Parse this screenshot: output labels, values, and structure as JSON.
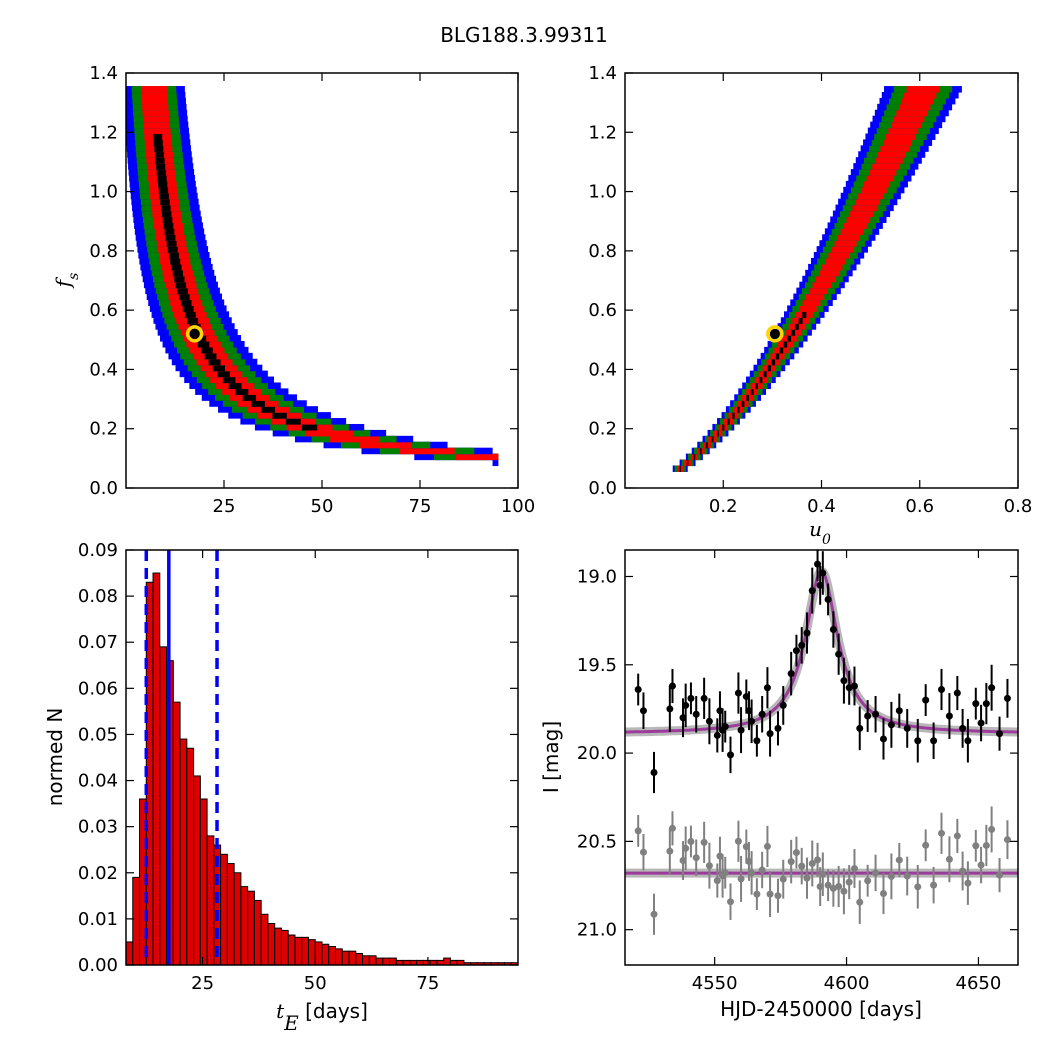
{
  "title": "BLG188.3.99311",
  "colors": {
    "c1": "#0000ff",
    "c2": "#008000",
    "c3": "#ff0000",
    "c4": "#000000",
    "best": "#ffd400",
    "model": "#9b3b9b",
    "data": "#000000",
    "residual": "#808080",
    "hist": "#dd0000"
  },
  "chart_data": [
    {
      "type": "scatter",
      "name": "fs_vs_tE",
      "ylabel": "f_s",
      "xlim": [
        0,
        100
      ],
      "ylim": [
        0,
        1.4
      ],
      "xticks": [
        "25",
        "50",
        "75",
        "100"
      ],
      "yticks": [
        "0.0",
        "0.2",
        "0.4",
        "0.6",
        "0.8",
        "1.0",
        "1.2",
        "1.4"
      ],
      "contour_levels": [
        "c1",
        "c2",
        "c3",
        "c4"
      ],
      "best_fit": [
        17.5,
        0.52
      ]
    },
    {
      "type": "scatter",
      "name": "fs_vs_u0",
      "xlabel": "u_0",
      "xlim": [
        0,
        0.8
      ],
      "ylim": [
        0,
        1.4
      ],
      "xticks": [
        "0.2",
        "0.4",
        "0.6",
        "0.8"
      ],
      "yticks": [
        "0.0",
        "0.2",
        "0.4",
        "0.6",
        "0.8",
        "1.0",
        "1.2",
        "1.4"
      ],
      "contour_levels": [
        "c1",
        "c2",
        "c3",
        "c4"
      ],
      "best_fit": [
        0.305,
        0.52
      ]
    },
    {
      "type": "bar",
      "name": "tE_histogram",
      "xlabel_sym": "t_E",
      "xlabel_unit": "[days]",
      "ylabel": "normed N",
      "xlim": [
        8,
        95
      ],
      "ylim": [
        0,
        0.09
      ],
      "xticks": [
        "25",
        "50",
        "75"
      ],
      "yticks": [
        "0.00",
        "0.01",
        "0.02",
        "0.03",
        "0.04",
        "0.05",
        "0.06",
        "0.07",
        "0.08",
        "0.09"
      ],
      "bin_start": 8,
      "bin_width": 1.5,
      "values": [
        0.005,
        0.019,
        0.036,
        0.083,
        0.085,
        0.069,
        0.066,
        0.057,
        0.049,
        0.047,
        0.041,
        0.036,
        0.028,
        0.026,
        0.024,
        0.022,
        0.02,
        0.017,
        0.016,
        0.014,
        0.011,
        0.009,
        0.008,
        0.0075,
        0.0065,
        0.006,
        0.006,
        0.0055,
        0.005,
        0.0045,
        0.004,
        0.0035,
        0.003,
        0.003,
        0.0025,
        0.002,
        0.002,
        0.0015,
        0.0015,
        0.0015,
        0.001,
        0.001,
        0.001,
        0.001,
        0.001,
        0.001,
        0.001,
        0.0015,
        0.001,
        0.001,
        0.0005,
        0.0005,
        0.0005,
        0.0005,
        0.0005,
        0.0005,
        0.0005,
        0.0005
      ],
      "median": 17.5,
      "bounds": [
        12.5,
        28.2
      ]
    },
    {
      "type": "line",
      "name": "light_curve",
      "xlabel": "HJD-2450000 [days]",
      "ylabel": "I [mag]",
      "xlim": [
        4516,
        4665
      ],
      "ylim": [
        21.2,
        18.85
      ],
      "xticks": [
        "4550",
        "4600",
        "4650"
      ],
      "yticks": [
        "19.0",
        "19.5",
        "20.0",
        "20.5",
        "21.0"
      ],
      "baseline": 19.89,
      "peak_mag": 18.97,
      "t0": 4590.5,
      "residual_offset": 20.68,
      "points": [
        [
          4521,
          19.64
        ],
        [
          4523,
          19.76
        ],
        [
          4527,
          20.11
        ],
        [
          4533,
          19.75
        ],
        [
          4534,
          19.62
        ],
        [
          4538,
          19.8
        ],
        [
          4539,
          19.73
        ],
        [
          4541,
          19.69
        ],
        [
          4543,
          19.78
        ],
        [
          4546,
          19.69
        ],
        [
          4548,
          19.82
        ],
        [
          4551,
          19.9
        ],
        [
          4552,
          19.76
        ],
        [
          4553,
          19.87
        ],
        [
          4554,
          19.85
        ],
        [
          4556,
          20.01
        ],
        [
          4559,
          19.66
        ],
        [
          4560,
          19.87
        ],
        [
          4562,
          19.68
        ],
        [
          4563,
          19.76
        ],
        [
          4564,
          19.82
        ],
        [
          4566,
          19.93
        ],
        [
          4568,
          19.78
        ],
        [
          4570,
          19.63
        ],
        [
          4571,
          19.89
        ],
        [
          4574,
          19.86
        ],
        [
          4576,
          19.73
        ],
        [
          4579,
          19.55
        ],
        [
          4581,
          19.42
        ],
        [
          4583,
          19.39
        ],
        [
          4585,
          19.32
        ],
        [
          4587,
          19.08
        ],
        [
          4589,
          18.93
        ],
        [
          4590,
          19.05
        ],
        [
          4591,
          18.98
        ],
        [
          4593,
          19.13
        ],
        [
          4595,
          19.3
        ],
        [
          4597,
          19.44
        ],
        [
          4599,
          19.59
        ],
        [
          4601,
          19.63
        ],
        [
          4603,
          19.62
        ],
        [
          4605,
          19.86
        ],
        [
          4608,
          19.79
        ],
        [
          4611,
          19.78
        ],
        [
          4614,
          19.92
        ],
        [
          4617,
          19.84
        ],
        [
          4620,
          19.76
        ],
        [
          4623,
          19.86
        ],
        [
          4627,
          19.93
        ],
        [
          4630,
          19.7
        ],
        [
          4633,
          19.93
        ],
        [
          4636,
          19.64
        ],
        [
          4639,
          19.79
        ],
        [
          4642,
          19.66
        ],
        [
          4644,
          19.86
        ],
        [
          4646,
          19.93
        ],
        [
          4649,
          19.72
        ],
        [
          4651,
          19.83
        ],
        [
          4653,
          19.72
        ],
        [
          4655,
          19.63
        ],
        [
          4658,
          19.89
        ],
        [
          4661,
          19.69
        ]
      ]
    }
  ]
}
